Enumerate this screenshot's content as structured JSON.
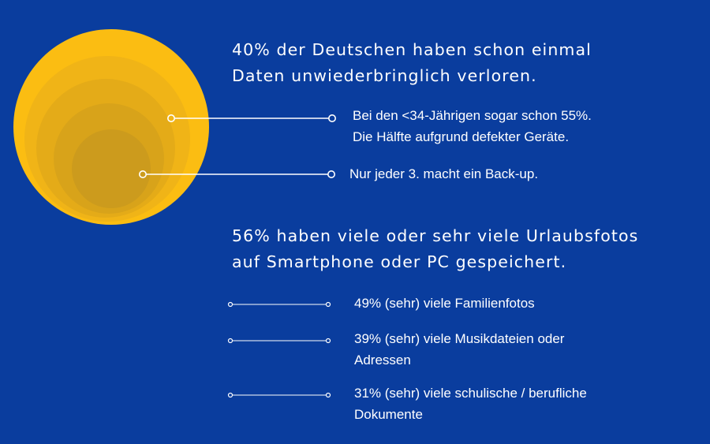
{
  "colors": {
    "background": "#0a3d9e",
    "circle_outer": "#fbbd12",
    "circle_ring_2": "#f0b417",
    "circle_ring_3": "#e4ab18",
    "circle_ring_4": "#d8a31a",
    "circle_inner": "#cc9b1d",
    "line": "#ffffff"
  },
  "section_top": {
    "headline_line1": "40% der Deutschen haben schon einmal",
    "headline_line2": "Daten unwiederbringlich verloren.",
    "callouts": [
      {
        "line1": "Bei den <34-Jährigen sogar schon 55%.",
        "line2": "Die Hälfte aufgrund defekter Geräte."
      },
      {
        "line1": "Nur jeder 3. macht ein Back-up."
      }
    ]
  },
  "section_bottom": {
    "headline_line1": "56% haben viele oder sehr viele Urlaubsfotos",
    "headline_line2": "auf Smartphone oder PC gespeichert.",
    "stats": [
      {
        "line1": "49% (sehr) viele Familienfotos"
      },
      {
        "line1": "39% (sehr) viele Musikdateien oder",
        "line2": "Adressen"
      },
      {
        "line1": "31% (sehr) viele schulische / berufliche",
        "line2": "Dokumente"
      }
    ]
  }
}
